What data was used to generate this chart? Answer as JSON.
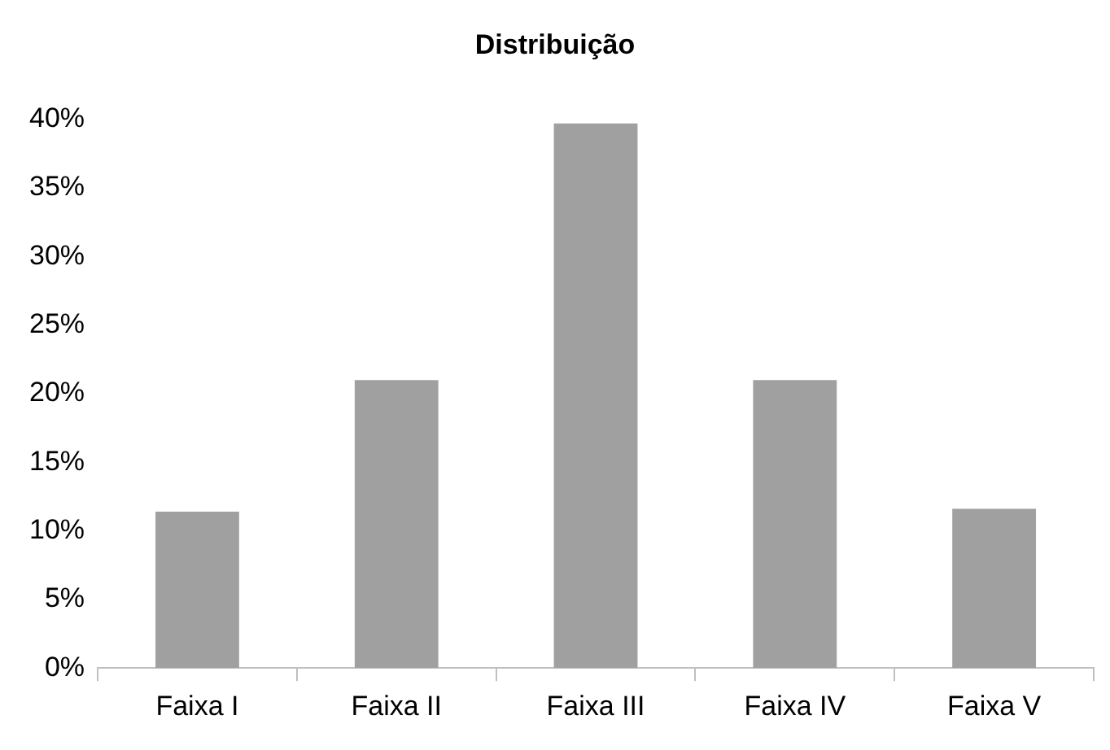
{
  "chart_data": {
    "type": "bar",
    "title": "Distribuição",
    "categories": [
      "Faixa I",
      "Faixa II",
      "Faixa III",
      "Faixa IV",
      "Faixa V"
    ],
    "values": [
      11.4,
      21,
      39.7,
      21,
      11.6
    ],
    "color": "#a0a0a0",
    "ylim": [
      0,
      40
    ],
    "yticks": [
      {
        "value": 0,
        "label": "0%"
      },
      {
        "value": 5,
        "label": "5%"
      },
      {
        "value": 10,
        "label": "10%"
      },
      {
        "value": 15,
        "label": "15%"
      },
      {
        "value": 20,
        "label": "20%"
      },
      {
        "value": 25,
        "label": "25%"
      },
      {
        "value": 30,
        "label": "30%"
      },
      {
        "value": 35,
        "label": "35%"
      },
      {
        "value": 40,
        "label": "40%"
      }
    ],
    "grid": false,
    "legend": false
  }
}
